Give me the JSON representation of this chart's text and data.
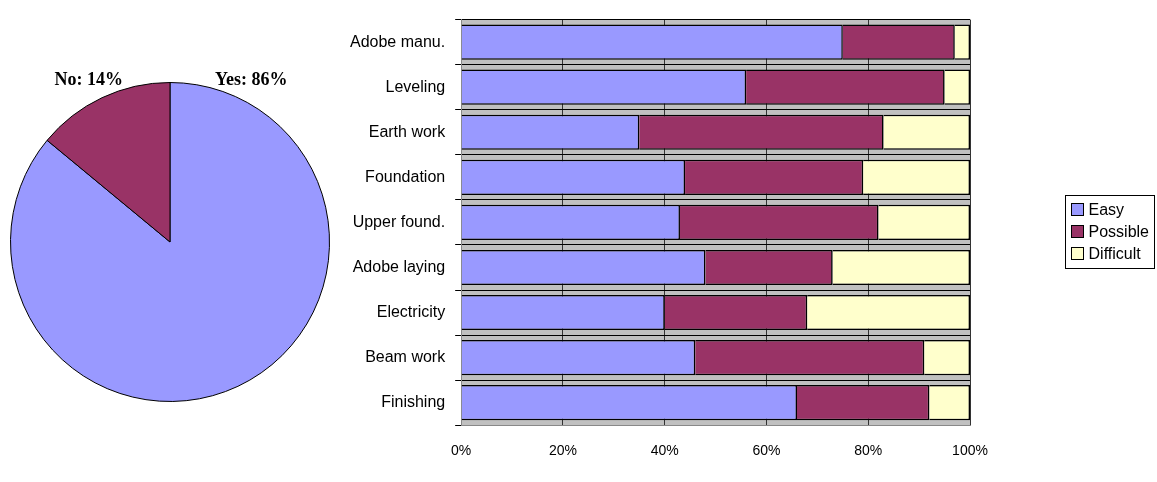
{
  "chart_data": [
    {
      "type": "pie",
      "categories": [
        "Yes",
        "No"
      ],
      "values": [
        86,
        14
      ],
      "colors": [
        "#9999ff",
        "#993366"
      ],
      "value_labels": [
        "86%",
        "14%"
      ]
    },
    {
      "type": "bar",
      "orientation": "horizontal",
      "stacked": true,
      "categories": [
        "Adobe manu.",
        "Leveling",
        "Earth work",
        "Foundation",
        "Upper found.",
        "Adobe laying",
        "Electricity",
        "Beam work",
        "Finishing"
      ],
      "series": [
        {
          "name": "Easy",
          "color": "#9999ff",
          "values": [
            75,
            56,
            35,
            44,
            43,
            48,
            40,
            46,
            66
          ]
        },
        {
          "name": "Possible",
          "color": "#993366",
          "values": [
            22,
            39,
            48,
            35,
            39,
            25,
            28,
            45,
            26
          ]
        },
        {
          "name": "Difficult",
          "color": "#ffffcc",
          "values": [
            3,
            5,
            17,
            21,
            18,
            27,
            32,
            9,
            8
          ]
        }
      ],
      "xlim": [
        0,
        100
      ],
      "xticks": [
        {
          "value": 0,
          "label": "0%"
        },
        {
          "value": 20,
          "label": "20%"
        },
        {
          "value": 40,
          "label": "40%"
        },
        {
          "value": 60,
          "label": "60%"
        },
        {
          "value": 80,
          "label": "80%"
        },
        {
          "value": 100,
          "label": "100%"
        }
      ],
      "grid": true,
      "legend": "right"
    }
  ]
}
